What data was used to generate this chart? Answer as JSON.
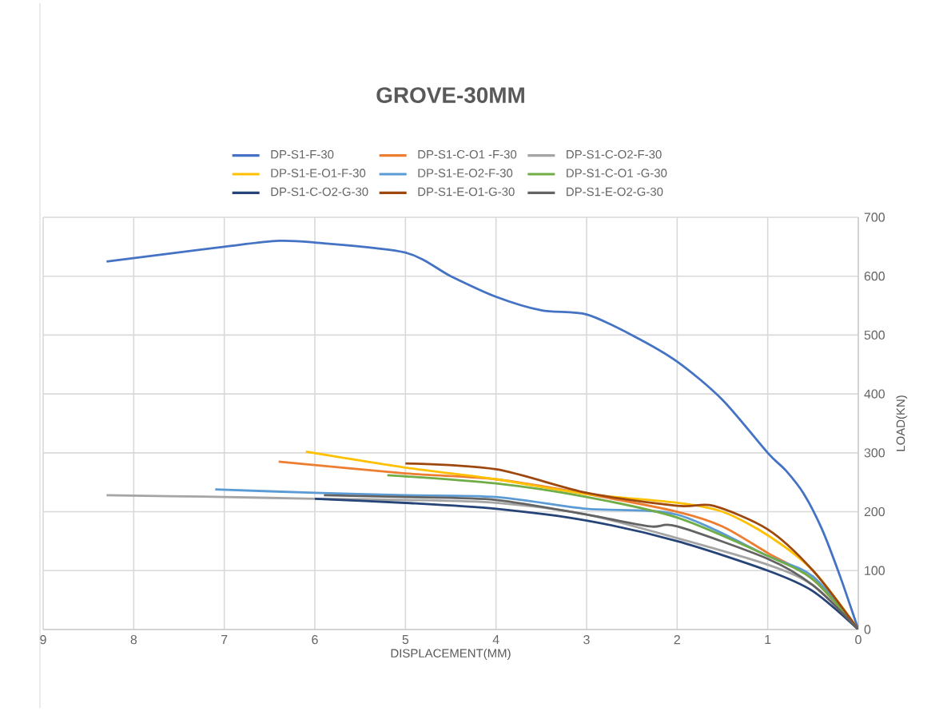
{
  "chart_data": {
    "type": "line",
    "title": "GROVE-30MM",
    "xlabel": "DISPLACEMENT(MM)",
    "ylabel": "LOAD(KN)",
    "xlim": [
      9,
      0
    ],
    "xticks": [
      9,
      8,
      7,
      6,
      5,
      4,
      3,
      2,
      1,
      0
    ],
    "ylim": [
      0,
      700
    ],
    "yticks": [
      0,
      100,
      200,
      300,
      400,
      500,
      600,
      700
    ],
    "grid": true,
    "legend": "top",
    "marker": "none",
    "line_style": "solid",
    "series": [
      {
        "name": "DP-S1-F-30",
        "color": "#4472c4",
        "x": [
          8.3,
          7,
          6.4,
          6,
          5,
          4.5,
          4,
          3.5,
          3,
          2.5,
          2,
          1.5,
          1,
          0.8,
          0.6,
          0.4,
          0.2,
          0
        ],
        "values": [
          625,
          650,
          660,
          657,
          640,
          600,
          565,
          542,
          535,
          500,
          455,
          390,
          300,
          270,
          230,
          170,
          90,
          0
        ]
      },
      {
        "name": "DP-S1-C-O1 -F-30",
        "color": "#ed7d31",
        "x": [
          6.4,
          5,
          4,
          3,
          2,
          1.5,
          1,
          0.5,
          0
        ],
        "values": [
          285,
          265,
          255,
          230,
          200,
          175,
          130,
          85,
          0
        ]
      },
      {
        "name": "DP-S1-C-O2-F-30",
        "color": "#a5a5a5",
        "x": [
          8.3,
          7,
          6,
          5,
          4,
          3,
          2,
          1,
          0.5,
          0
        ],
        "values": [
          228,
          225,
          222,
          220,
          215,
          195,
          155,
          110,
          75,
          0
        ]
      },
      {
        "name": "DP-S1-E-O1-F-30",
        "color": "#ffc000",
        "x": [
          6.1,
          5,
          4,
          3,
          2,
          1.5,
          1,
          0.5,
          0
        ],
        "values": [
          302,
          275,
          255,
          230,
          215,
          200,
          160,
          100,
          0
        ]
      },
      {
        "name": "DP-S1-E-O2-F-30",
        "color": "#5b9bd5",
        "x": [
          7.1,
          6,
          5,
          4,
          3,
          2,
          1,
          0.5,
          0
        ],
        "values": [
          238,
          232,
          228,
          225,
          205,
          195,
          125,
          90,
          0
        ]
      },
      {
        "name": "DP-S1-C-O1 -G-30",
        "color": "#70ad47",
        "x": [
          5.2,
          4,
          3,
          2,
          1,
          0.5,
          0
        ],
        "values": [
          262,
          248,
          225,
          190,
          125,
          85,
          0
        ]
      },
      {
        "name": "DP-S1-C-O2-G-30",
        "color": "#264478",
        "x": [
          6,
          5,
          4,
          3,
          2,
          1,
          0.5,
          0
        ],
        "values": [
          222,
          215,
          205,
          185,
          150,
          100,
          65,
          0
        ]
      },
      {
        "name": "DP-S1-E-O1-G-30",
        "color": "#9e480e",
        "x": [
          5,
          4,
          3,
          2,
          1.6,
          1,
          0.5,
          0
        ],
        "values": [
          282,
          272,
          232,
          210,
          210,
          170,
          100,
          0
        ]
      },
      {
        "name": "DP-S1-E-O2-G-30",
        "color": "#636363",
        "x": [
          5.9,
          5,
          4,
          3,
          2.3,
          2,
          1,
          0.5,
          0
        ],
        "values": [
          228,
          225,
          220,
          195,
          175,
          175,
          120,
          75,
          0
        ]
      }
    ]
  }
}
